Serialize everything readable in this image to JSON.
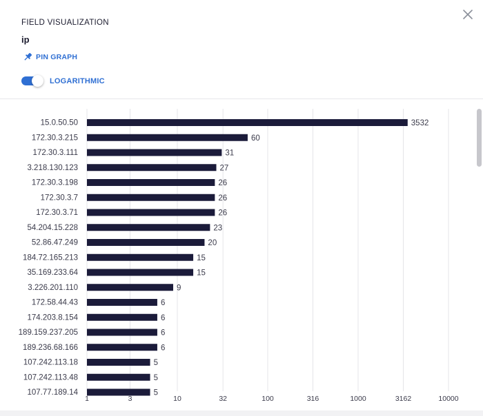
{
  "header": {
    "title": "FIELD VISUALIZATION",
    "field_name": "ip",
    "pin_label": "PIN GRAPH",
    "toggle_label": "LOGARITHMIC",
    "toggle_on": true
  },
  "colors": {
    "bar": "#1b1b3a",
    "accent": "#2f6fd3",
    "grid": "#e4e4e8",
    "text": "#3a3a4a"
  },
  "icons": {
    "pin": "pin-icon",
    "close": "close-icon"
  },
  "chart_data": {
    "type": "bar",
    "orientation": "horizontal",
    "scale": "log",
    "categories": [
      "15.0.50.50",
      "172.30.3.215",
      "172.30.3.111",
      "3.218.130.123",
      "172.30.3.198",
      "172.30.3.7",
      "172.30.3.71",
      "54.204.15.228",
      "52.86.47.249",
      "184.72.165.213",
      "35.169.233.64",
      "3.226.201.110",
      "172.58.44.43",
      "174.203.8.154",
      "189.159.237.205",
      "189.236.68.166",
      "107.242.113.18",
      "107.242.113.48",
      "107.77.189.14"
    ],
    "values": [
      3532,
      60,
      31,
      27,
      26,
      26,
      26,
      23,
      20,
      15,
      15,
      9,
      6,
      6,
      6,
      6,
      5,
      5,
      5
    ],
    "xticks": [
      1,
      3,
      10,
      32,
      100,
      316,
      1000,
      3162,
      10000
    ],
    "xlim": [
      1,
      10000
    ],
    "grid": true
  }
}
